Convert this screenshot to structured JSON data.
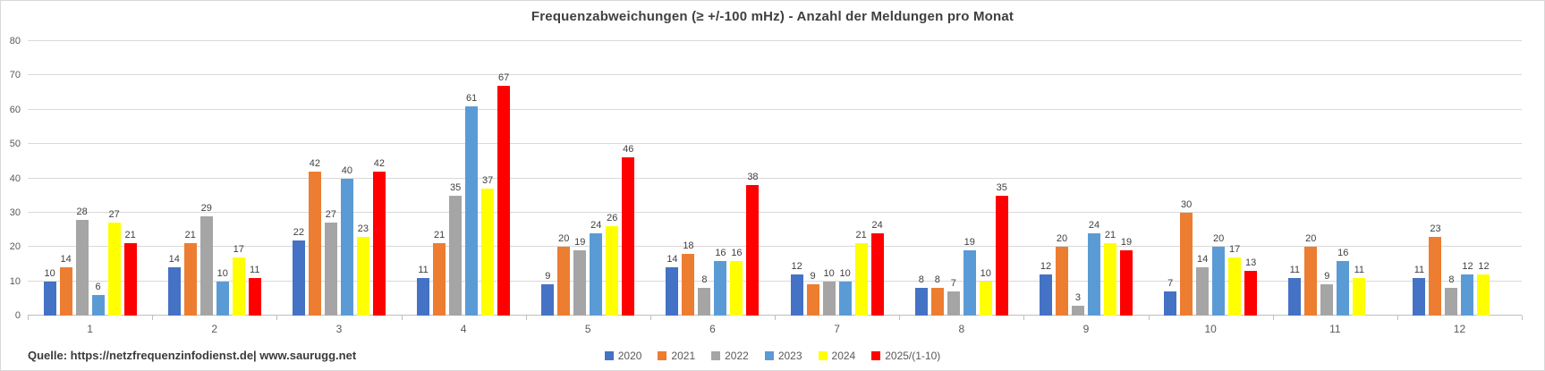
{
  "chart_data": {
    "type": "bar",
    "title": "Frequenzabweichungen (≥ +/-100 mHz) - Anzahl der Meldungen pro Monat",
    "source": "Quelle: https://netzfrequenzinfodienst.de| www.saurugg.net",
    "xlabel": "",
    "ylabel": "",
    "ylim": [
      0,
      80
    ],
    "yticks": [
      0,
      10,
      20,
      30,
      40,
      50,
      60,
      70,
      80
    ],
    "grid": true,
    "legend_position": "bottom",
    "categories": [
      "1",
      "2",
      "3",
      "4",
      "5",
      "6",
      "7",
      "8",
      "9",
      "10",
      "11",
      "12"
    ],
    "series": [
      {
        "name": "2020",
        "color": "#4472C4",
        "values": [
          10,
          14,
          22,
          11,
          9,
          14,
          12,
          8,
          12,
          7,
          11,
          11
        ]
      },
      {
        "name": "2021",
        "color": "#ED7D31",
        "values": [
          14,
          21,
          42,
          21,
          20,
          18,
          9,
          8,
          20,
          30,
          20,
          23
        ]
      },
      {
        "name": "2022",
        "color": "#A5A5A5",
        "values": [
          28,
          29,
          27,
          35,
          19,
          8,
          10,
          7,
          3,
          14,
          9,
          8
        ]
      },
      {
        "name": "2023",
        "color": "#5B9BD5",
        "values": [
          6,
          10,
          40,
          61,
          24,
          16,
          10,
          19,
          24,
          20,
          16,
          12
        ]
      },
      {
        "name": "2024",
        "color": "#FFFF00",
        "values": [
          27,
          17,
          23,
          37,
          26,
          16,
          21,
          10,
          21,
          17,
          11,
          12
        ]
      },
      {
        "name": "2025/(1-10)",
        "color": "#FF0000",
        "values": [
          21,
          11,
          42,
          67,
          46,
          38,
          24,
          35,
          19,
          13,
          null,
          null
        ]
      }
    ]
  }
}
